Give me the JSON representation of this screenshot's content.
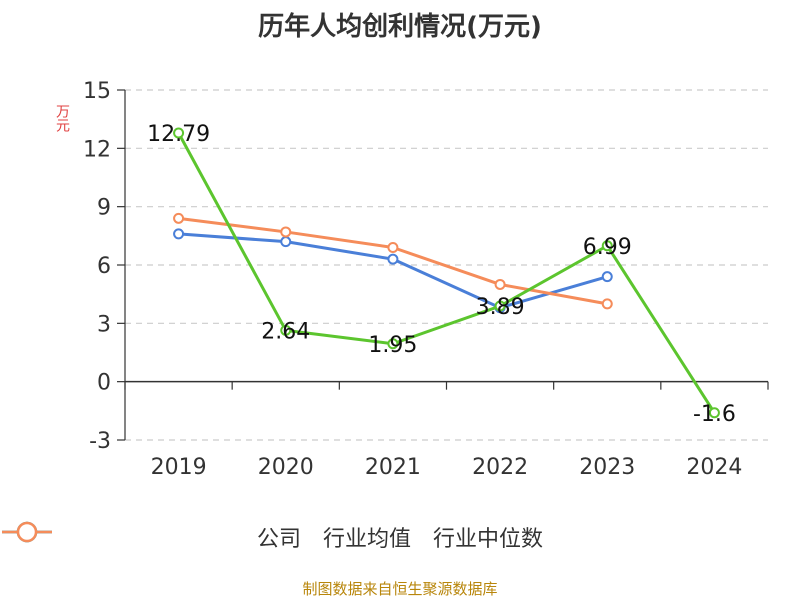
{
  "chart_data": {
    "type": "line",
    "title": "历年人均创利情况(万元)",
    "ylabel": "万元",
    "xlabel": "",
    "categories": [
      "2019",
      "2020",
      "2021",
      "2022",
      "2023",
      "2024"
    ],
    "ylim": [
      -3,
      15
    ],
    "yticks": [
      -3,
      0,
      3,
      6,
      9,
      12,
      15
    ],
    "grid": true,
    "legend_position": "bottom",
    "series": [
      {
        "name": "公司",
        "color": "#5cc52e",
        "values": [
          12.79,
          2.64,
          1.95,
          3.89,
          6.99,
          -1.6
        ],
        "labels": [
          "12.79",
          "2.64",
          "1.95",
          "3.89",
          "6.99",
          "-1.6"
        ]
      },
      {
        "name": "行业均值",
        "color": "#4a7fd8",
        "values": [
          7.6,
          7.2,
          6.3,
          3.8,
          5.4,
          null
        ]
      },
      {
        "name": "行业中位数",
        "color": "#f58c5a",
        "values": [
          8.4,
          7.7,
          6.9,
          5.0,
          4.0,
          null
        ]
      }
    ]
  },
  "source": "制图数据来自恒生聚源数据库"
}
